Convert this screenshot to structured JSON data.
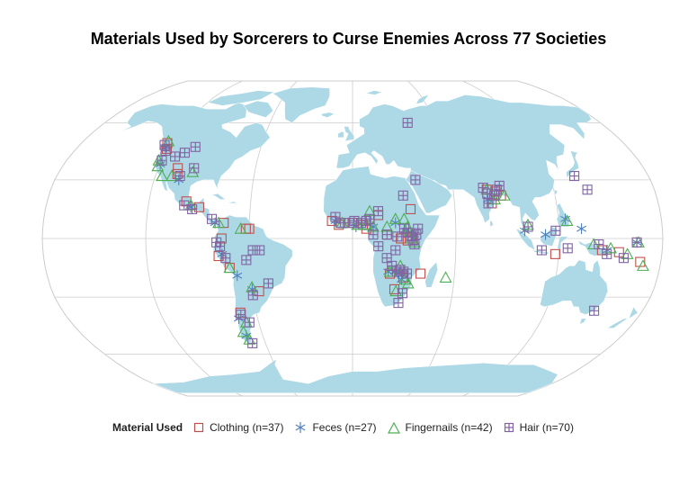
{
  "title": "Materials Used by Sorcerers to Curse Enemies Across 77 Societies",
  "legend": {
    "title": "Material Used",
    "items": [
      {
        "label": "Clothing (n=37)",
        "shape": "square",
        "color": "#c0504d"
      },
      {
        "label": "Feces (n=27)",
        "shape": "asterisk",
        "color": "#4f81bd"
      },
      {
        "label": "Fingernails (n=42)",
        "shape": "triangle",
        "color": "#4caf50"
      },
      {
        "label": "Hair (n=70)",
        "shape": "square-cross",
        "color": "#8064a2"
      }
    ]
  },
  "colors": {
    "ocean": "#ffffff",
    "land": "#add8e6",
    "graticule": "#cccccc"
  },
  "chart_data": {
    "type": "scatter",
    "projection": "robinson",
    "series": [
      {
        "name": "Clothing (n=37)",
        "points": [
          [
            -123,
            49
          ],
          [
            -121,
            46
          ],
          [
            -108,
            36
          ],
          [
            -107,
            33
          ],
          [
            -98,
            19
          ],
          [
            -90,
            16
          ],
          [
            -75,
            8
          ],
          [
            -62,
            5
          ],
          [
            -60,
            5
          ],
          [
            -76,
            0
          ],
          [
            -78,
            -9
          ],
          [
            -72,
            -15
          ],
          [
            -56,
            -27
          ],
          [
            -70,
            -38
          ],
          [
            -12,
            9
          ],
          [
            -8,
            7
          ],
          [
            0,
            8
          ],
          [
            6,
            7
          ],
          [
            8,
            5
          ],
          [
            15,
            12
          ],
          [
            20,
            2
          ],
          [
            28,
            0
          ],
          [
            32,
            -1
          ],
          [
            35,
            0
          ],
          [
            22,
            -18
          ],
          [
            30,
            -20
          ],
          [
            25,
            -26
          ],
          [
            40,
            -18
          ],
          [
            34,
            15
          ],
          [
            80,
            25
          ],
          [
            85,
            24
          ],
          [
            88,
            22
          ],
          [
            82,
            18
          ],
          [
            118,
            -8
          ],
          [
            145,
            -6
          ],
          [
            155,
            -7
          ],
          [
            168,
            -12
          ]
        ]
      },
      {
        "name": "Feces (n=27)",
        "points": [
          [
            -122,
            47
          ],
          [
            -120,
            38
          ],
          [
            -105,
            30
          ],
          [
            -95,
            16
          ],
          [
            -80,
            8
          ],
          [
            -76,
            -8
          ],
          [
            -68,
            -19
          ],
          [
            -60,
            -26
          ],
          [
            -72,
            -41
          ],
          [
            -71,
            -50
          ],
          [
            -10,
            9
          ],
          [
            2,
            6
          ],
          [
            12,
            6
          ],
          [
            25,
            8
          ],
          [
            31,
            4
          ],
          [
            36,
            2
          ],
          [
            21,
            -17
          ],
          [
            25,
            -17
          ],
          [
            27,
            -18
          ],
          [
            29,
            -21
          ],
          [
            100,
            4
          ],
          [
            112,
            2
          ],
          [
            124,
            10
          ],
          [
            133,
            5
          ],
          [
            148,
            -6
          ],
          [
            165,
            -2
          ],
          [
            80,
            20
          ]
        ]
      },
      {
        "name": "Fingernails (n=42)",
        "points": [
          [
            -123,
            50
          ],
          [
            -122,
            40
          ],
          [
            -121,
            37
          ],
          [
            -116,
            32
          ],
          [
            -110,
            32
          ],
          [
            -98,
            34
          ],
          [
            -95,
            17
          ],
          [
            -78,
            8
          ],
          [
            -65,
            5
          ],
          [
            -72,
            -15
          ],
          [
            -60,
            -25
          ],
          [
            -68,
            -43
          ],
          [
            -72,
            -48
          ],
          [
            -70,
            -52
          ],
          [
            -6,
            8
          ],
          [
            3,
            7
          ],
          [
            8,
            7
          ],
          [
            10,
            14
          ],
          [
            12,
            6
          ],
          [
            20,
            6
          ],
          [
            25,
            10
          ],
          [
            30,
            10
          ],
          [
            32,
            6
          ],
          [
            33,
            3
          ],
          [
            34,
            0
          ],
          [
            36,
            -2
          ],
          [
            28,
            -14
          ],
          [
            22,
            -17
          ],
          [
            31,
            -21
          ],
          [
            33,
            -23
          ],
          [
            26,
            -27
          ],
          [
            55,
            -20
          ],
          [
            80,
            25
          ],
          [
            90,
            22
          ],
          [
            84,
            20
          ],
          [
            102,
            7
          ],
          [
            125,
            9
          ],
          [
            140,
            -3
          ],
          [
            150,
            -5
          ],
          [
            160,
            -8
          ],
          [
            166,
            -2
          ],
          [
            170,
            -14
          ]
        ]
      },
      {
        "name": "Hair (n=70)",
        "points": [
          [
            -124,
            48
          ],
          [
            -121,
            45
          ],
          [
            -120,
            40
          ],
          [
            -113,
            42
          ],
          [
            -108,
            44
          ],
          [
            -103,
            47
          ],
          [
            -98,
            36
          ],
          [
            -105,
            32
          ],
          [
            -99,
            17
          ],
          [
            -94,
            15
          ],
          [
            -82,
            10
          ],
          [
            -79,
            -2
          ],
          [
            -77,
            -4
          ],
          [
            -74,
            -10
          ],
          [
            -62,
            -11
          ],
          [
            -58,
            -6
          ],
          [
            -54,
            -6
          ],
          [
            -60,
            -29
          ],
          [
            -50,
            -23
          ],
          [
            -70,
            -39
          ],
          [
            -66,
            -43
          ],
          [
            -69,
            -54
          ],
          [
            -10,
            11
          ],
          [
            -7,
            8
          ],
          [
            -2,
            8
          ],
          [
            1,
            9
          ],
          [
            5,
            8
          ],
          [
            8,
            9
          ],
          [
            10,
            10
          ],
          [
            15,
            14
          ],
          [
            20,
            2
          ],
          [
            26,
            1
          ],
          [
            30,
            5
          ],
          [
            32,
            3
          ],
          [
            34,
            1
          ],
          [
            35,
            -1
          ],
          [
            36,
            -3
          ],
          [
            37,
            2
          ],
          [
            38,
            5
          ],
          [
            30,
            22
          ],
          [
            38,
            30
          ],
          [
            40,
            60
          ],
          [
            26,
            -17
          ],
          [
            28,
            -16
          ],
          [
            30,
            -17
          ],
          [
            32,
            -18
          ],
          [
            28,
            -33
          ],
          [
            30,
            -28
          ],
          [
            80,
            23
          ],
          [
            86,
            25
          ],
          [
            88,
            27
          ],
          [
            84,
            22
          ],
          [
            102,
            6
          ],
          [
            110,
            -6
          ],
          [
            118,
            4
          ],
          [
            125,
            -5
          ],
          [
            143,
            -3
          ],
          [
            148,
            -8
          ],
          [
            158,
            -10
          ],
          [
            165,
            -2
          ],
          [
            150,
            -37
          ],
          [
            135,
            32
          ],
          [
            140,
            25
          ],
          [
            80,
            18
          ],
          [
            78,
            26
          ],
          [
            20,
            -10
          ],
          [
            23,
            -14
          ],
          [
            25,
            -6
          ],
          [
            15,
            -4
          ],
          [
            12,
            2
          ]
        ]
      }
    ]
  }
}
